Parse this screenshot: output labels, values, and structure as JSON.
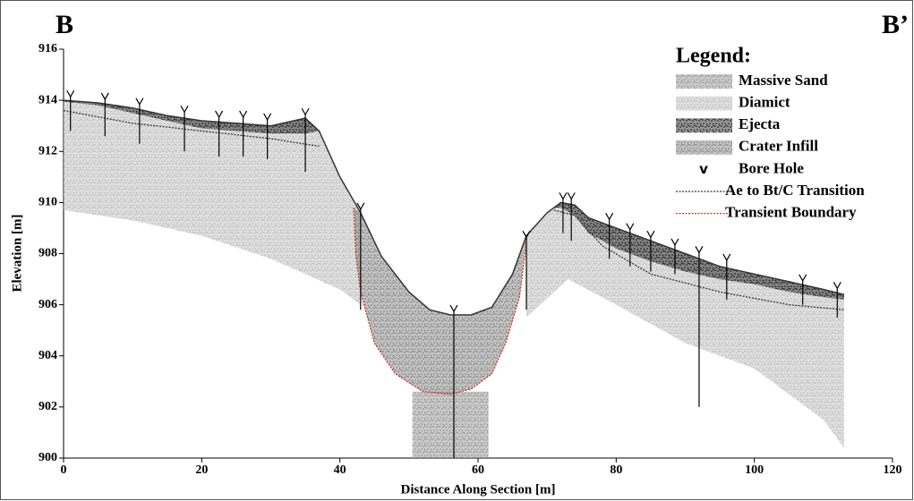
{
  "chart_data": {
    "type": "cross-section",
    "corner_labels": [
      "B",
      "B’"
    ],
    "xlabel": "Distance Along Section [m]",
    "ylabel": "Elevation [m]",
    "xlim": [
      0,
      120
    ],
    "xticks": [
      0,
      20,
      40,
      60,
      80,
      100,
      120
    ],
    "ylim": [
      900,
      916
    ],
    "yticks": [
      900,
      902,
      904,
      906,
      908,
      910,
      912,
      914,
      916
    ],
    "legend_title": "Legend:",
    "layers": [
      {
        "name": "Massive Sand",
        "color": "#8a8a8a",
        "x": [
          50.5,
          61.5,
          61.5,
          50.5
        ],
        "y": [
          902.6,
          902.6,
          900,
          900
        ]
      },
      {
        "name": "Diamict",
        "color": "#b8b8b8",
        "x": [
          0,
          5,
          10,
          15,
          20,
          25,
          30,
          35,
          37,
          40,
          43,
          43,
          40,
          30,
          20,
          10,
          0,
          null,
          67,
          70,
          72,
          74,
          76,
          80,
          85,
          90,
          95,
          100,
          105,
          110,
          113,
          113,
          110,
          100,
          90,
          80,
          73,
          67
        ],
        "y": [
          914,
          913.9,
          913.7,
          913.4,
          913.2,
          913.1,
          913.0,
          913.3,
          912.8,
          911,
          909.6,
          906,
          906.6,
          907.8,
          908.7,
          909.3,
          909.7,
          null,
          908.7,
          909.6,
          910,
          909.9,
          909.4,
          909,
          908.5,
          908,
          907.5,
          907.2,
          906.9,
          906.6,
          906.4,
          900.4,
          901.5,
          903.5,
          904.5,
          906,
          907,
          905.5
        ]
      },
      {
        "name": "Ejecta",
        "color": "#111111",
        "x": [
          0,
          5,
          10,
          15,
          20,
          25,
          30,
          35,
          37,
          35,
          30,
          25,
          20,
          15,
          10,
          5,
          0,
          null,
          71,
          72,
          74,
          76,
          80,
          85,
          90,
          95,
          100,
          105,
          110,
          113,
          113,
          110,
          105,
          100,
          95,
          90,
          85,
          80,
          76,
          74,
          72,
          71
        ],
        "y": [
          914,
          913.9,
          913.7,
          913.4,
          913.2,
          913.1,
          913.0,
          913.3,
          912.8,
          912.7,
          912.7,
          912.8,
          912.9,
          913.2,
          913.5,
          913.8,
          913.95,
          null,
          909.8,
          910,
          909.9,
          909.4,
          909,
          908.5,
          908,
          907.5,
          907.2,
          906.9,
          906.6,
          906.4,
          906.2,
          906.3,
          906.5,
          906.8,
          907.0,
          907.3,
          907.7,
          908.2,
          908.8,
          909.5,
          909.8,
          909.8
        ]
      },
      {
        "name": "Crater Infill",
        "color": "#777777",
        "x": [
          42,
          43,
          46,
          50,
          53,
          56,
          59,
          62,
          65,
          67,
          66,
          64,
          62,
          59,
          56,
          52,
          48,
          45,
          43,
          42.3
        ],
        "y": [
          909.8,
          909.6,
          907.9,
          906.5,
          905.8,
          905.6,
          905.6,
          905.9,
          907.2,
          908.6,
          906.3,
          904.5,
          903.3,
          902.7,
          902.5,
          902.6,
          903.3,
          904.5,
          906.5,
          908
        ]
      }
    ],
    "bore_holes": {
      "name": "Bore Hole",
      "symbol": "v",
      "x": [
        1,
        6,
        11,
        17.5,
        22.5,
        26,
        29.5,
        35,
        43,
        56.5,
        67,
        72.3,
        73.5,
        79,
        82,
        85,
        88.5,
        92,
        96,
        107,
        112
      ],
      "top": [
        914,
        913.9,
        913.7,
        913.4,
        913.2,
        913.2,
        913.1,
        913.3,
        909.6,
        905.6,
        908.5,
        910,
        910,
        909.2,
        908.8,
        908.5,
        908.2,
        907.9,
        907.6,
        906.8,
        906.5
      ],
      "bottom": [
        912.8,
        912.6,
        912.3,
        912,
        911.8,
        911.8,
        911.7,
        911.2,
        905.8,
        900,
        905.8,
        908.8,
        908.5,
        907.8,
        907.5,
        907.3,
        907.2,
        902,
        906.2,
        906,
        905.5
      ]
    },
    "surface": {
      "color": "#333333",
      "x": [
        0,
        5,
        10,
        15,
        20,
        25,
        30,
        35,
        37,
        40,
        43,
        46,
        50,
        53,
        56,
        59,
        62,
        65,
        67,
        70,
        72,
        74,
        76,
        80,
        85,
        90,
        95,
        100,
        105,
        110,
        113
      ],
      "y": [
        914,
        913.9,
        913.7,
        913.4,
        913.2,
        913.1,
        913.0,
        913.3,
        912.8,
        911,
        909.6,
        907.9,
        906.5,
        905.8,
        905.6,
        905.6,
        905.9,
        907.2,
        908.7,
        909.6,
        910,
        909.9,
        909.4,
        909,
        908.5,
        908,
        907.5,
        907.2,
        906.9,
        906.6,
        906.4
      ]
    },
    "lines": [
      {
        "name": "Ae to Bt/C Transition",
        "color": "#333333",
        "x": [
          0,
          10,
          20,
          30,
          37,
          null,
          71,
          74,
          78,
          85,
          95,
          105,
          113
        ],
        "y": [
          913.6,
          913.1,
          912.8,
          912.5,
          912.2,
          null,
          909.7,
          909.5,
          908.3,
          907.2,
          906.5,
          906,
          905.8
        ]
      },
      {
        "name": "Transient Boundary",
        "color": "#e03030",
        "x": [
          42,
          42.3,
          43,
          45,
          48,
          52,
          56,
          59,
          62,
          64,
          66,
          67
        ],
        "y": [
          909.8,
          908,
          906.5,
          904.5,
          903.3,
          902.6,
          902.5,
          902.7,
          903.3,
          904.5,
          906.3,
          908.4
        ]
      }
    ]
  }
}
